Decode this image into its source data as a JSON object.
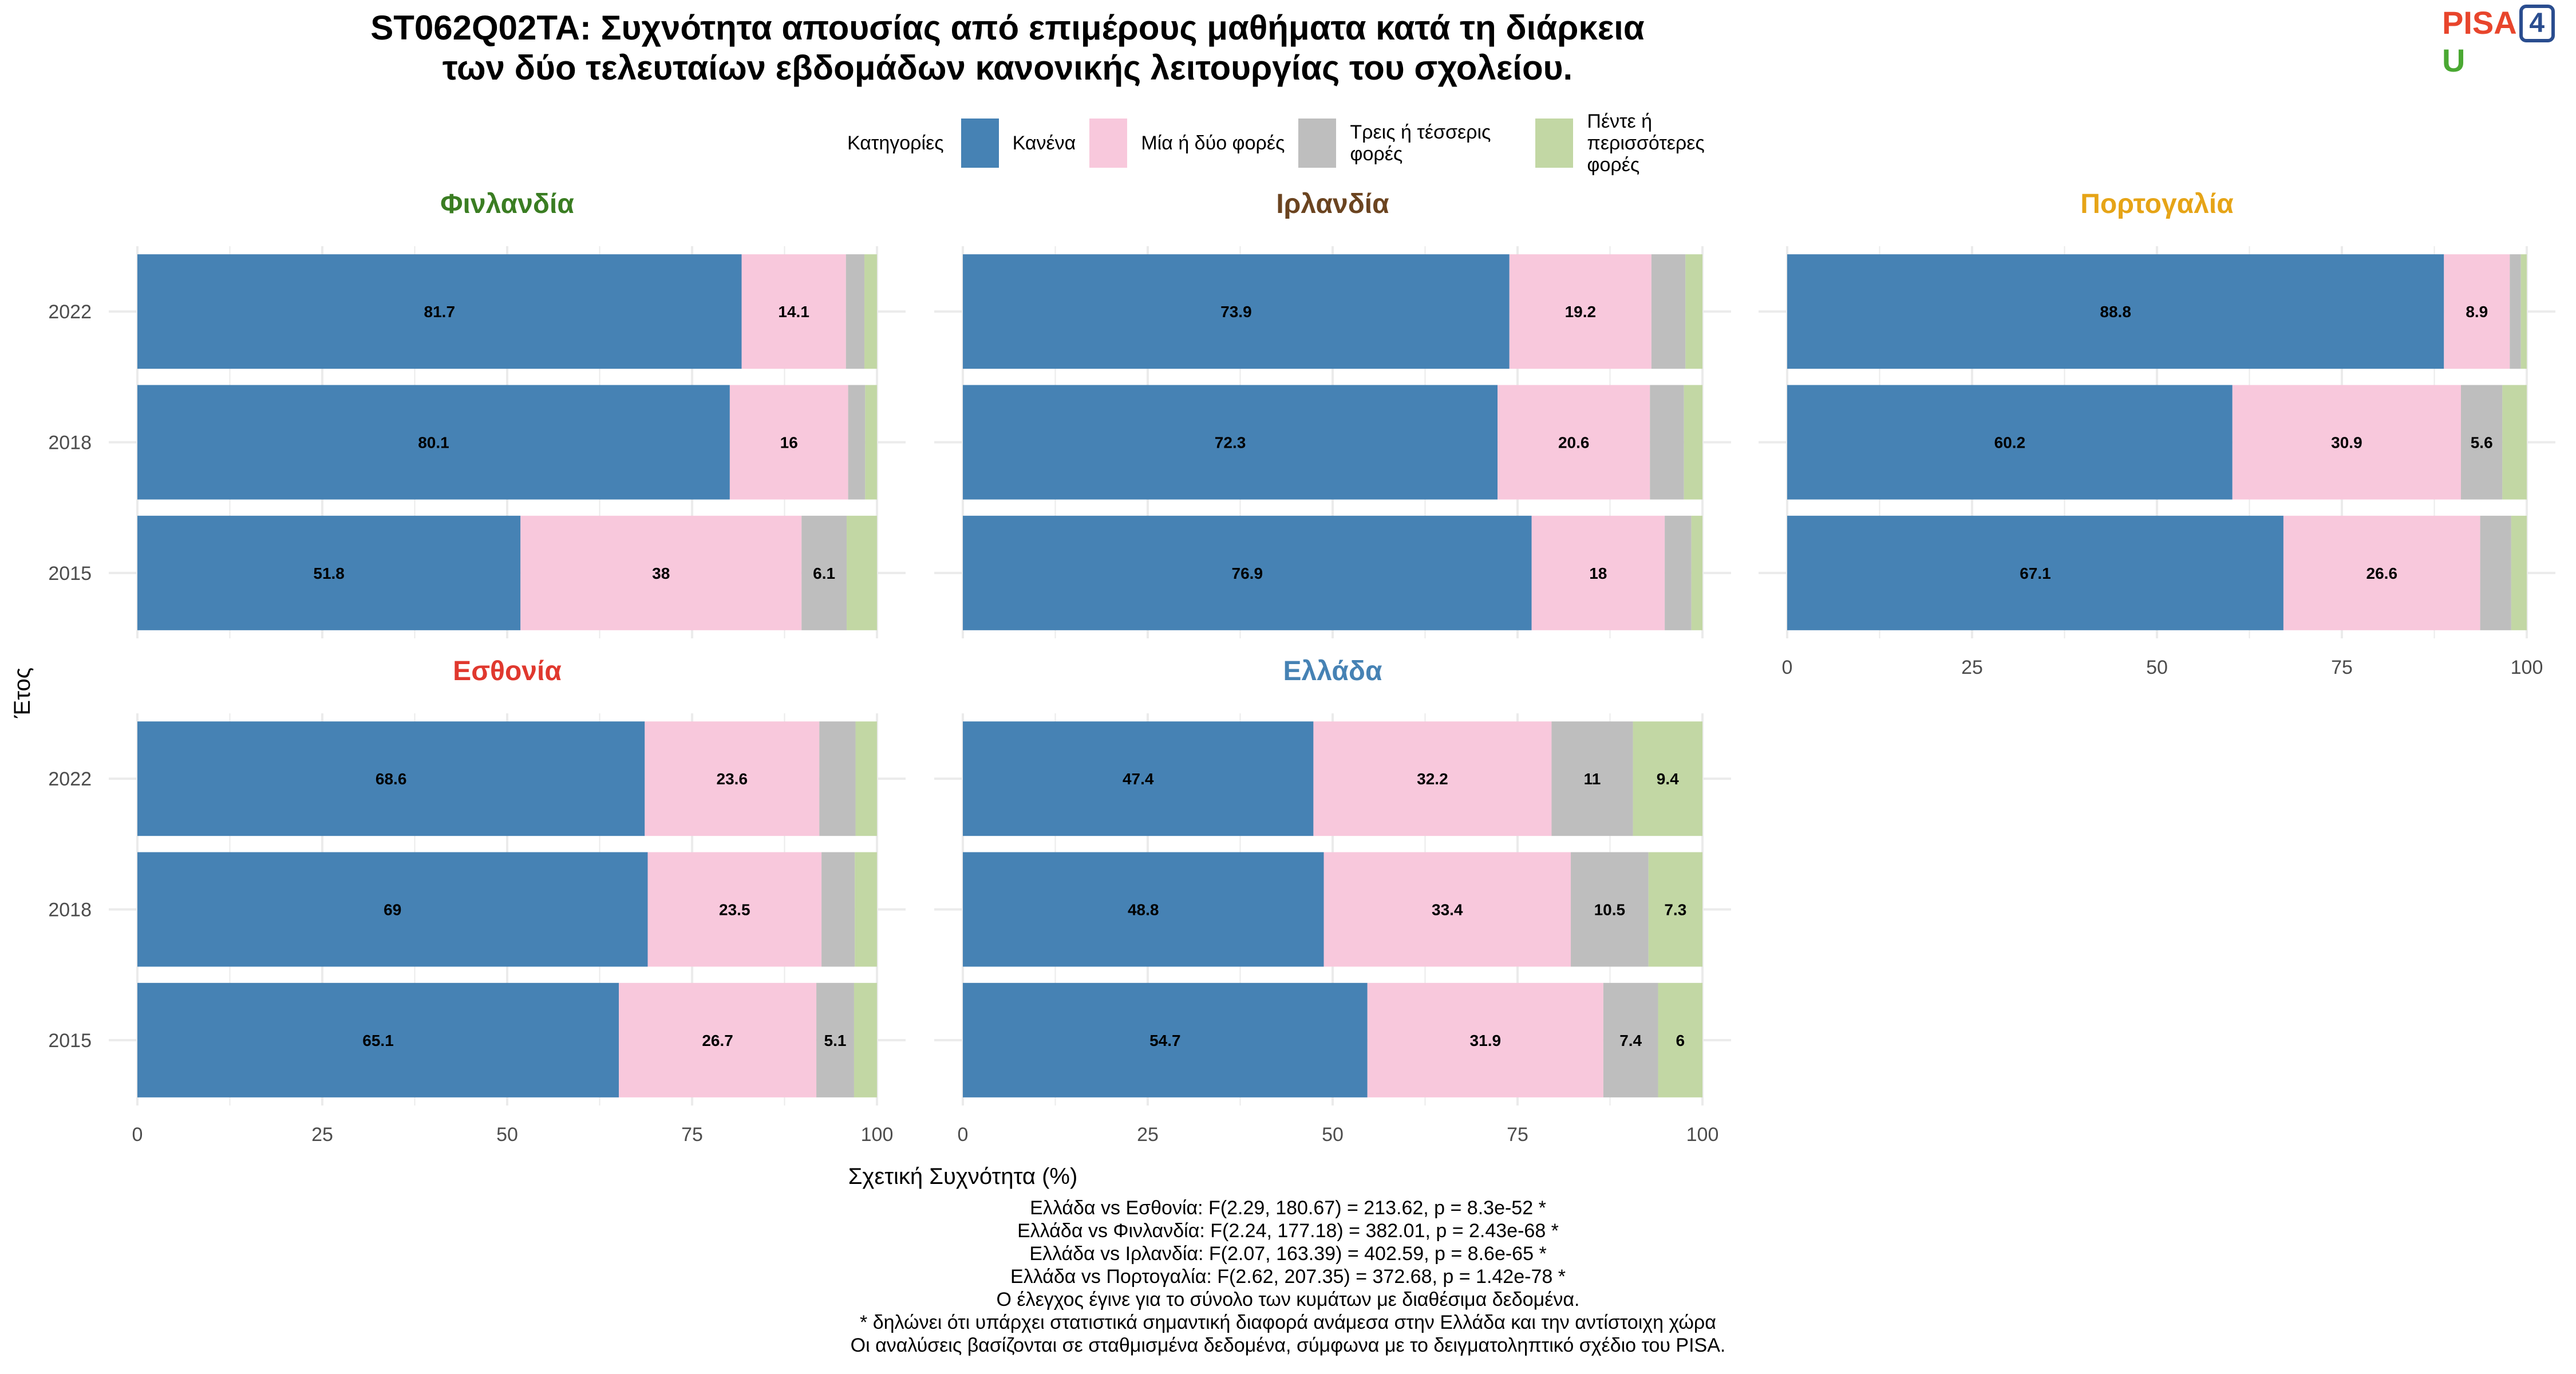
{
  "title_lines": [
    "ST062Q02TA: Συχνότητα απουσίας από επιμέρους μαθήματα κατά τη διάρκεια",
    "των δύο τελευταίων εβδομάδων κανονικής λειτουργίας του σχολείου."
  ],
  "logo": {
    "part1": "PISA",
    "part2": "4",
    "part3": "U"
  },
  "legend": {
    "title": "Κατηγορίες",
    "items": [
      {
        "label": "Κανένα",
        "color": "#4682b4"
      },
      {
        "label": "Μία ή δύο φορές",
        "color": "#f8c8dc"
      },
      {
        "label": "Τρεις ή τέσσερις φορές",
        "color": "#bebebe"
      },
      {
        "label": "Πέντε ή περισσότερες φορές",
        "color": "#c2d7a4"
      }
    ]
  },
  "chart_data": {
    "type": "bar",
    "orientation": "horizontal",
    "stacked": true,
    "xlabel": "Σχετική Συχνότητα (%)",
    "ylabel": "Έτος",
    "xlim": [
      0,
      100
    ],
    "x_ticks": [
      "0",
      "25",
      "50",
      "75",
      "100"
    ],
    "categories": [
      "2022",
      "2018",
      "2015"
    ],
    "series_names": [
      "Κανένα",
      "Μία ή δύο φορές",
      "Τρεις ή τέσσερις φορές",
      "Πέντε ή περισσότερες φορές"
    ],
    "colors": [
      "#4682b4",
      "#f8c8dc",
      "#bebebe",
      "#c2d7a4"
    ],
    "grid": true,
    "panels": [
      {
        "name": "Φινλανδία",
        "title_color": "#3a7d22",
        "rows": [
          {
            "year": "2022",
            "values": [
              81.7,
              14.1,
              2.5,
              1.7
            ],
            "labels": [
              "81.7",
              "14.1",
              "",
              ""
            ]
          },
          {
            "year": "2018",
            "values": [
              80.1,
              16.0,
              2.3,
              1.6
            ],
            "labels": [
              "80.1",
              "16",
              "",
              ""
            ]
          },
          {
            "year": "2015",
            "values": [
              51.8,
              38.0,
              6.1,
              4.1
            ],
            "labels": [
              "51.8",
              "38",
              "6.1",
              ""
            ]
          }
        ]
      },
      {
        "name": "Ιρλανδία",
        "title_color": "#6b4420",
        "rows": [
          {
            "year": "2022",
            "values": [
              73.9,
              19.2,
              4.6,
              2.3
            ],
            "labels": [
              "73.9",
              "19.2",
              "",
              ""
            ]
          },
          {
            "year": "2018",
            "values": [
              72.3,
              20.6,
              4.6,
              2.5
            ],
            "labels": [
              "72.3",
              "20.6",
              "",
              ""
            ]
          },
          {
            "year": "2015",
            "values": [
              76.9,
              18.0,
              3.6,
              1.5
            ],
            "labels": [
              "76.9",
              "18",
              "",
              ""
            ]
          }
        ]
      },
      {
        "name": "Πορτογαλία",
        "title_color": "#e6a417",
        "rows": [
          {
            "year": "2022",
            "values": [
              88.8,
              8.9,
              1.5,
              0.8
            ],
            "labels": [
              "88.8",
              "8.9",
              "",
              ""
            ]
          },
          {
            "year": "2018",
            "values": [
              60.2,
              30.9,
              5.6,
              3.3
            ],
            "labels": [
              "60.2",
              "30.9",
              "5.6",
              ""
            ]
          },
          {
            "year": "2015",
            "values": [
              67.1,
              26.6,
              4.2,
              2.1
            ],
            "labels": [
              "67.1",
              "26.6",
              "",
              ""
            ]
          }
        ]
      },
      {
        "name": "Εσθονία",
        "title_color": "#e0382e",
        "rows": [
          {
            "year": "2022",
            "values": [
              68.6,
              23.6,
              4.9,
              2.9
            ],
            "labels": [
              "68.6",
              "23.6",
              "",
              ""
            ]
          },
          {
            "year": "2018",
            "values": [
              69.0,
              23.5,
              4.5,
              3.0
            ],
            "labels": [
              "69",
              "23.5",
              "",
              ""
            ]
          },
          {
            "year": "2015",
            "values": [
              65.1,
              26.7,
              5.1,
              3.1
            ],
            "labels": [
              "65.1",
              "26.7",
              "5.1",
              ""
            ]
          }
        ]
      },
      {
        "name": "Ελλάδα",
        "title_color": "#4682b4",
        "rows": [
          {
            "year": "2022",
            "values": [
              47.4,
              32.2,
              11.0,
              9.4
            ],
            "labels": [
              "47.4",
              "32.2",
              "11",
              "9.4"
            ]
          },
          {
            "year": "2018",
            "values": [
              48.8,
              33.4,
              10.5,
              7.3
            ],
            "labels": [
              "48.8",
              "33.4",
              "10.5",
              "7.3"
            ]
          },
          {
            "year": "2015",
            "values": [
              54.7,
              31.9,
              7.4,
              6.0
            ],
            "labels": [
              "54.7",
              "31.9",
              "7.4",
              "6"
            ]
          }
        ]
      }
    ]
  },
  "footer_lines": [
    "Ελλάδα vs Εσθονία: F(2.29, 180.67) = 213.62, p = 8.3e-52 *",
    "Ελλάδα vs Φινλανδία: F(2.24, 177.18) = 382.01, p = 2.43e-68 *",
    "Ελλάδα vs Ιρλανδία: F(2.07, 163.39) = 402.59, p = 8.6e-65 *",
    "Ελλάδα vs Πορτογαλία: F(2.62, 207.35) = 372.68, p = 1.42e-78 *",
    "Ο έλεγχος έγινε για το σύνολο των κυμάτων με διαθέσιμα δεδομένα.",
    "* δηλώνει ότι υπάρχει στατιστικά σημαντική διαφορά ανάμεσα στην Ελλάδα και την αντίστοιχη χώρα",
    "Οι αναλύσεις βασίζονται σε σταθμισμένα δεδομένα, σύμφωνα με το δειγματοληπτικό σχέδιο του PISA."
  ]
}
